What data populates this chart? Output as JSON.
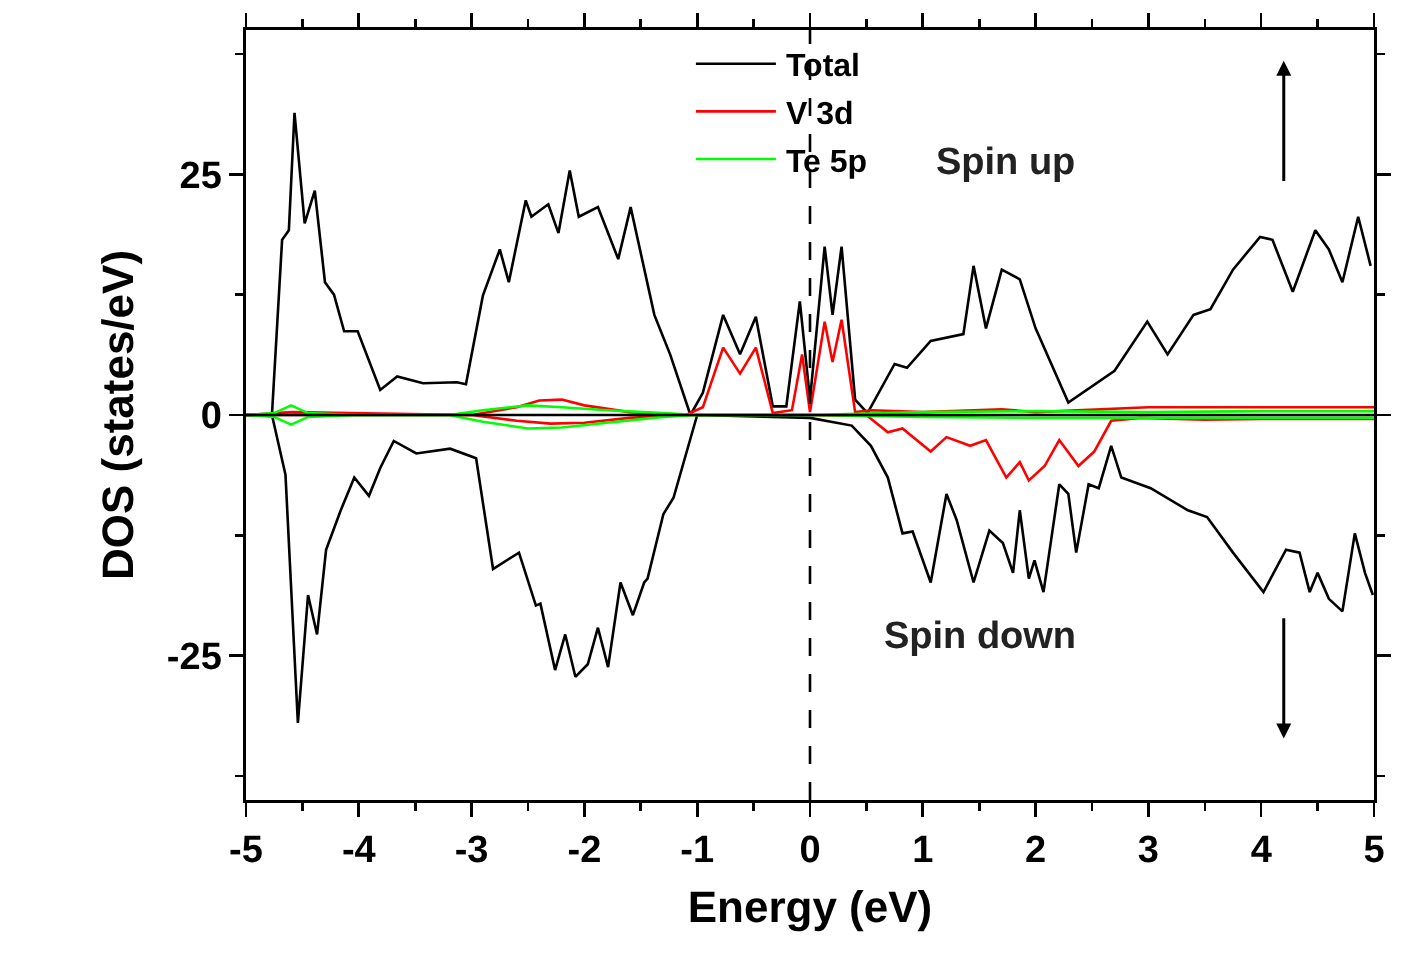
{
  "chart_data": {
    "type": "line",
    "xlabel": "Energy (eV)",
    "ylabel": "DOS (states/eV)",
    "xlim": [
      -5,
      5
    ],
    "ylim": [
      -40,
      40
    ],
    "xticks": [
      -5,
      {
        "value": -4.5,
        "label": null
      },
      -4,
      {
        "value": -3.5,
        "label": null
      },
      -3,
      {
        "value": -2.5,
        "label": null
      },
      -2,
      {
        "value": -1.5,
        "label": null
      },
      -1,
      {
        "value": -0.5,
        "label": null
      },
      0,
      {
        "value": 0.5,
        "label": null
      },
      1,
      {
        "value": 1.5,
        "label": null
      },
      2,
      {
        "value": 2.5,
        "label": null
      },
      3,
      {
        "value": 3.5,
        "label": null
      },
      4,
      {
        "value": 4.5,
        "label": null
      },
      5
    ],
    "yticks": [
      {
        "value": -37.5,
        "label": null
      },
      -25,
      {
        "value": -12.5,
        "label": null
      },
      0,
      {
        "value": 12.5,
        "label": null
      },
      25,
      {
        "value": 37.5,
        "label": null
      }
    ],
    "grid": false,
    "legend": "top",
    "line_style": "solid",
    "marker": "none",
    "series": [
      {
        "name": "Total",
        "color": "#000000",
        "x": [
          -5,
          -4.77,
          -4.68,
          -4.62,
          -4.57,
          -4.48,
          -4.39,
          -4.3,
          -4.22,
          -4.13,
          -4.01,
          -3.81,
          -3.66,
          -3.43,
          -3.13,
          -3.05,
          -2.9,
          -2.75,
          -2.67,
          -2.52,
          -2.47,
          -2.32,
          -2.23,
          -2.13,
          -2.05,
          -1.88,
          -1.7,
          -1.59,
          -1.38,
          -1.24,
          -1.06,
          -0.95,
          -0.77,
          -0.62,
          -0.48,
          -0.33,
          -0.21,
          -0.09,
          0,
          0.13,
          0.2,
          0.28,
          0.4,
          0.51,
          0.75,
          0.86,
          1.07,
          1.36,
          1.45,
          1.56,
          1.7,
          1.86,
          2,
          2.29,
          2.7,
          2.99,
          3.17,
          3.4,
          3.55,
          3.75,
          3.99,
          4.1,
          4.28,
          4.48,
          4.6,
          4.72,
          4.86,
          4.97
        ],
        "values": [
          0,
          0,
          18.2,
          19.2,
          31.4,
          19.9,
          23.3,
          13.8,
          12.5,
          8.7,
          8.7,
          2.6,
          4,
          3.3,
          3.4,
          3.2,
          12.4,
          17.2,
          13.8,
          22.3,
          20.6,
          21.9,
          18.9,
          25.4,
          20.6,
          21.6,
          16.2,
          21.6,
          10.4,
          6.3,
          0,
          2.3,
          10.4,
          6.3,
          10.2,
          0.9,
          0.9,
          11.8,
          1.6,
          17.5,
          10.4,
          17.5,
          1.6,
          0.2,
          5.3,
          4.9,
          7.7,
          8.4,
          15.5,
          9,
          15.1,
          14.1,
          9,
          1.3,
          4.6,
          9.7,
          6.3,
          10.4,
          11,
          15.1,
          18.5,
          18.2,
          12.8,
          19.2,
          17.2,
          13.8,
          20.6,
          15.5
        ]
      },
      {
        "color": "#000000",
        "x": [
          -5,
          -4.77,
          -4.65,
          -4.54,
          -4.45,
          -4.37,
          -4.29,
          -4.16,
          -4.04,
          -3.91,
          -3.81,
          -3.69,
          -3.49,
          -3.19,
          -2.96,
          -2.81,
          -2.58,
          -2.43,
          -2.39,
          -2.26,
          -2.17,
          -2.08,
          -1.97,
          -1.88,
          -1.79,
          -1.68,
          -1.57,
          -1.47,
          -1.44,
          -1.3,
          -1.21,
          -1,
          0,
          0.37,
          0.54,
          0.69,
          0.82,
          0.91,
          1.07,
          1.21,
          1.3,
          1.45,
          1.59,
          1.71,
          1.8,
          1.86,
          1.94,
          1.99,
          2.07,
          2.21,
          2.29,
          2.36,
          2.47,
          2.56,
          2.67,
          2.76,
          3.02,
          3.35,
          3.52,
          3.75,
          4.02,
          4.22,
          4.34,
          4.43,
          4.5,
          4.6,
          4.72,
          4.83,
          4.92,
          4.99
        ],
        "values": [
          0,
          0,
          -6.2,
          -32,
          -18.7,
          -22.8,
          -14,
          -9.9,
          -6.5,
          -8.4,
          -5.5,
          -2.7,
          -4,
          -3.5,
          -4.5,
          -16,
          -14.3,
          -19.8,
          -19.6,
          -26.5,
          -22.8,
          -27.2,
          -25.9,
          -22.1,
          -26.2,
          -17.4,
          -20.8,
          -17.4,
          -17,
          -10.3,
          -8.6,
          0,
          -0.3,
          -1.1,
          -3.2,
          -6.5,
          -12.3,
          -12.1,
          -17.4,
          -8.2,
          -10.9,
          -17.4,
          -12,
          -13.3,
          -16.4,
          -9.9,
          -17,
          -15.1,
          -18.4,
          -7.2,
          -8.2,
          -14.3,
          -7.2,
          -7.6,
          -3.2,
          -6.5,
          -7.6,
          -9.9,
          -10.6,
          -14.3,
          -18.4,
          -14,
          -14.3,
          -18.4,
          -16.4,
          -19.1,
          -20.4,
          -12.3,
          -16.4,
          -18.7
        ]
      },
      {
        "name": "V 3d",
        "color": "#ff0000",
        "x": [
          -5,
          -4.6,
          -3,
          -2.6,
          -2.4,
          -2.2,
          -2,
          -1.6,
          -1.1,
          -0.95,
          -0.77,
          -0.62,
          -0.48,
          -0.33,
          -0.16,
          -0.07,
          0,
          0.13,
          0.2,
          0.28,
          0.4,
          0.55,
          1,
          1.7,
          2,
          3,
          4,
          5
        ],
        "values": [
          0,
          0.3,
          0,
          0.8,
          1.5,
          1.6,
          1,
          0.3,
          0,
          0.8,
          7,
          4.3,
          7,
          0.2,
          0.5,
          6.3,
          0.3,
          9.7,
          5.5,
          9.9,
          0.3,
          0.5,
          0.3,
          0.6,
          0.3,
          0.8,
          0.8,
          0.8
        ]
      },
      {
        "color": "#ff0000",
        "x": [
          -5,
          -3,
          -2.6,
          -2.3,
          -2,
          -1.6,
          -1.1,
          0,
          0.51,
          0.69,
          0.82,
          1.07,
          1.21,
          1.42,
          1.56,
          1.74,
          1.86,
          1.94,
          2.08,
          2.21,
          2.38,
          2.52,
          2.67,
          2.93,
          3.5,
          4,
          5
        ],
        "values": [
          0,
          0,
          -0.6,
          -0.9,
          -0.8,
          -0.3,
          0,
          0,
          -0.1,
          -1.8,
          -1.4,
          -3.8,
          -2.3,
          -3.2,
          -2.6,
          -6.5,
          -4.9,
          -6.8,
          -5.3,
          -2.6,
          -5.3,
          -3.8,
          -0.6,
          -0.3,
          -0.5,
          -0.4,
          -0.4
        ]
      },
      {
        "name": "Te 5p",
        "color": "#00ff00",
        "x": [
          -5,
          -4.75,
          -4.6,
          -4.45,
          -4,
          -3.2,
          -2.9,
          -2.5,
          -2.2,
          -1.8,
          -1.3,
          -1,
          0,
          1,
          2,
          3,
          4,
          5
        ],
        "values": [
          0,
          0.2,
          1,
          0.2,
          0,
          0,
          0.5,
          1,
          0.8,
          0.5,
          0.2,
          0,
          0,
          0.3,
          0.4,
          0.3,
          0.4,
          0.4
        ]
      },
      {
        "color": "#00ff00",
        "x": [
          -5,
          -4.75,
          -4.6,
          -4.45,
          -4,
          -3.2,
          -2.9,
          -2.5,
          -2.2,
          -1.8,
          -1.3,
          -1,
          0,
          1,
          2,
          3,
          4,
          5
        ],
        "values": [
          0,
          -0.2,
          -1,
          -0.2,
          0,
          0,
          -0.7,
          -1.4,
          -1.3,
          -0.8,
          -0.2,
          0,
          0,
          -0.2,
          -0.3,
          -0.3,
          -0.3,
          -0.3
        ]
      }
    ],
    "ref_lines": [
      {
        "axis": "x",
        "value": 0,
        "line_style": "dashed",
        "color": "#000000"
      },
      {
        "axis": "y",
        "value": 0,
        "line_style": "solid",
        "color": "#000000"
      }
    ],
    "annotations": [
      "Spin up",
      "Spin down"
    ]
  }
}
